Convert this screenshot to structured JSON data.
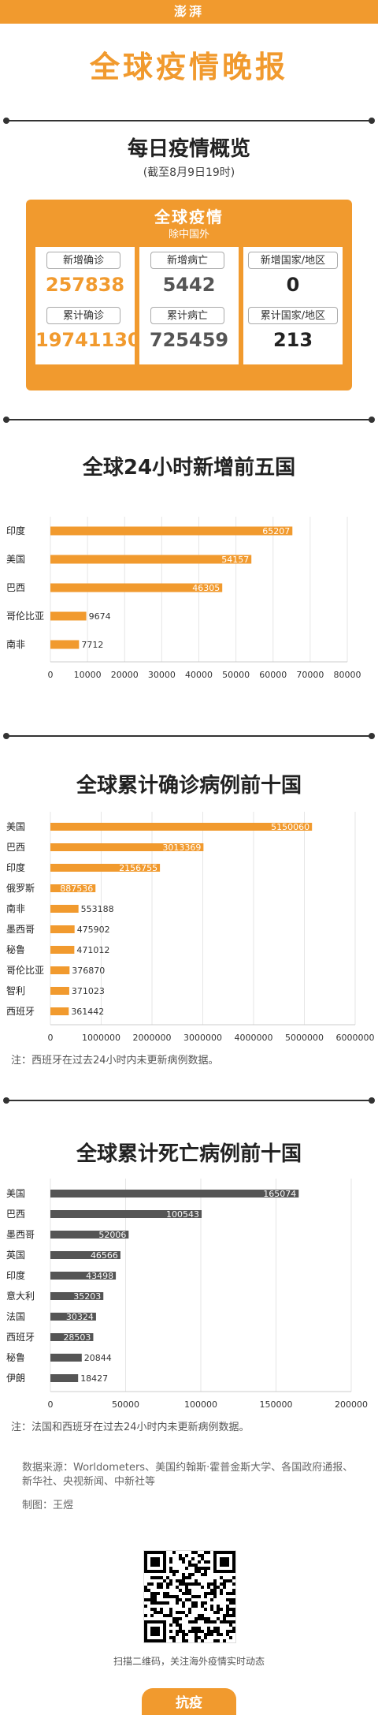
{
  "header": {
    "logo": "澎湃",
    "title": "全球疫情晚报"
  },
  "overview": {
    "title": "每日疫情概览",
    "date": "(截至8月9日19时)",
    "box_title": "全球疫情",
    "box_sub": "除中国外",
    "cards": [
      {
        "label1": "新增确诊",
        "value1": "257838",
        "label2": "累计确诊",
        "value2": "19741130",
        "color": "#f19a2e"
      },
      {
        "label1": "新增病亡",
        "value1": "5442",
        "label2": "累计病亡",
        "value2": "725459",
        "color": "#555555"
      },
      {
        "label1": "新增国家/地区",
        "value1": "0",
        "label2": "累计国家/地区",
        "value2": "213",
        "color": "#222222"
      }
    ]
  },
  "chart_data": [
    {
      "type": "bar",
      "title": "全球24小时新增前五国",
      "categories": [
        "印度",
        "美国",
        "巴西",
        "哥伦比亚",
        "南非"
      ],
      "values": [
        65207,
        54157,
        46305,
        9674,
        7712
      ],
      "xlim": [
        0,
        80000
      ],
      "ticks": [
        "0",
        "10000",
        "20000",
        "30000",
        "40000",
        "50000",
        "60000",
        "70000",
        "80000"
      ],
      "color": "#f19a2e"
    },
    {
      "type": "bar",
      "title": "全球累计确诊病例前十国",
      "categories": [
        "美国",
        "巴西",
        "印度",
        "俄罗斯",
        "南非",
        "墨西哥",
        "秘鲁",
        "哥伦比亚",
        "智利",
        "西班牙"
      ],
      "values": [
        5150060,
        3013369,
        2156755,
        887536,
        553188,
        475902,
        471012,
        376870,
        371023,
        361442
      ],
      "xlim": [
        0,
        6000000
      ],
      "ticks": [
        "0",
        "1000000",
        "2000000",
        "3000000",
        "4000000",
        "5000000",
        "6000000"
      ],
      "color": "#f19a2e",
      "note": "注：西班牙在过去24小时内未更新病例数据。"
    },
    {
      "type": "bar",
      "title": "全球累计死亡病例前十国",
      "categories": [
        "美国",
        "巴西",
        "墨西哥",
        "英国",
        "印度",
        "意大利",
        "法国",
        "西班牙",
        "秘鲁",
        "伊朗"
      ],
      "values": [
        165074,
        100543,
        52006,
        46566,
        43498,
        35203,
        30324,
        28503,
        20844,
        18427
      ],
      "xlim": [
        0,
        200000
      ],
      "ticks": [
        "0",
        "50000",
        "100000",
        "150000",
        "200000"
      ],
      "color": "#555555",
      "note": "注：法国和西班牙在过去24小时内未更新病例数据。"
    }
  ],
  "footer": {
    "source": "数据来源：Worldometers、美国约翰斯·霍普金斯大学、各国政府通报、新华社、央视新闻、中新社等",
    "author": "制图：王煜",
    "scan": "扫描二维码，关注海外疫情实时动态",
    "tab": "抗疫"
  }
}
